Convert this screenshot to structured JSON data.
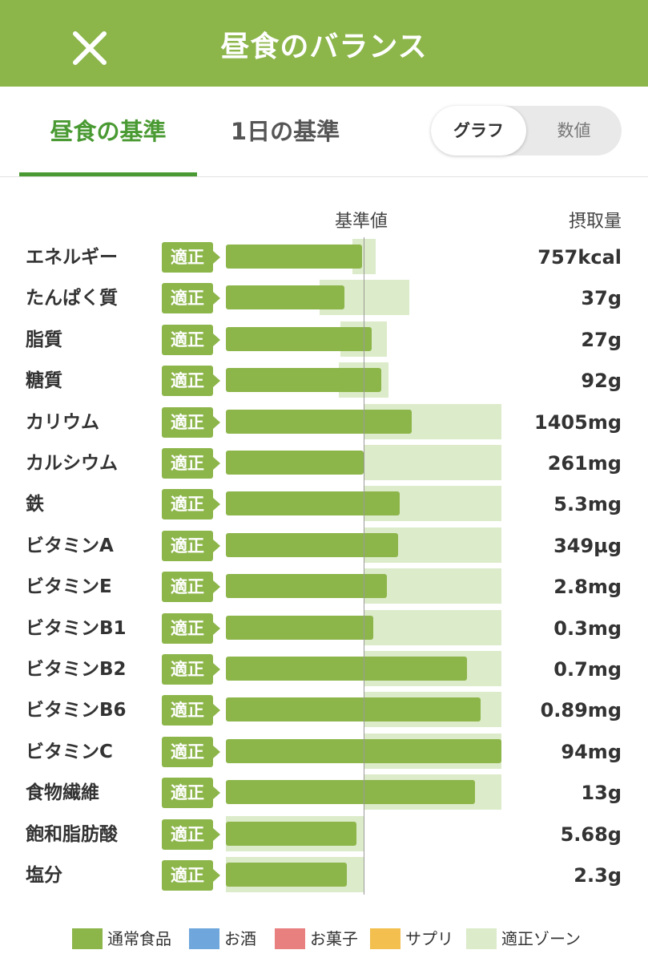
{
  "header": {
    "title": "昼食のバランス"
  },
  "tabs": [
    {
      "label": "昼食の基準"
    },
    {
      "label": "1日の基準"
    }
  ],
  "toggle": {
    "graph_label": "グラフ",
    "number_label": "数値"
  },
  "columns": {
    "reference": "基準値",
    "intake": "摂取量"
  },
  "nutrients": [
    {
      "name": "エネルギー",
      "status": "適正",
      "value": "757kcal",
      "ratio": 0.99,
      "zone": [
        0.92,
        1.09
      ]
    },
    {
      "name": "たんぱく質",
      "status": "適正",
      "value": "37g",
      "ratio": 0.86,
      "zone": [
        0.68,
        1.33
      ]
    },
    {
      "name": "脂質",
      "status": "適正",
      "value": "27g",
      "ratio": 1.06,
      "zone": [
        0.83,
        1.17
      ]
    },
    {
      "name": "糖質",
      "status": "適正",
      "value": "92g",
      "ratio": 1.13,
      "zone": [
        0.82,
        1.18
      ]
    },
    {
      "name": "カリウム",
      "status": "適正",
      "value": "1405mg",
      "ratio": 1.35,
      "zone": [
        1.0,
        2.0
      ]
    },
    {
      "name": "カルシウム",
      "status": "適正",
      "value": "261mg",
      "ratio": 1.0,
      "zone": [
        1.0,
        2.0
      ]
    },
    {
      "name": "鉄",
      "status": "適正",
      "value": "5.3mg",
      "ratio": 1.26,
      "zone": [
        1.0,
        2.0
      ]
    },
    {
      "name": "ビタミンA",
      "status": "適正",
      "value": "349µg",
      "ratio": 1.25,
      "zone": [
        1.0,
        2.0
      ]
    },
    {
      "name": "ビタミンE",
      "status": "適正",
      "value": "2.8mg",
      "ratio": 1.17,
      "zone": [
        1.0,
        2.0
      ]
    },
    {
      "name": "ビタミンB1",
      "status": "適正",
      "value": "0.3mg",
      "ratio": 1.07,
      "zone": [
        1.0,
        2.0
      ]
    },
    {
      "name": "ビタミンB2",
      "status": "適正",
      "value": "0.7mg",
      "ratio": 1.75,
      "zone": [
        1.0,
        2.0
      ]
    },
    {
      "name": "ビタミンB6",
      "status": "適正",
      "value": "0.89mg",
      "ratio": 1.85,
      "zone": [
        1.0,
        2.0
      ]
    },
    {
      "name": "ビタミンC",
      "status": "適正",
      "value": "94mg",
      "ratio": 2.0,
      "zone": [
        1.0,
        2.0
      ]
    },
    {
      "name": "食物繊維",
      "status": "適正",
      "value": "13g",
      "ratio": 1.81,
      "zone": [
        1.0,
        2.0
      ]
    },
    {
      "name": "飽和脂肪酸",
      "status": "適正",
      "value": "5.68g",
      "ratio": 0.95,
      "zone": [
        0.0,
        1.0
      ]
    },
    {
      "name": "塩分",
      "status": "適正",
      "value": "2.3g",
      "ratio": 0.88,
      "zone": [
        0.0,
        1.0
      ]
    }
  ],
  "legend": [
    {
      "label": "通常食品",
      "color": "#8cb54a"
    },
    {
      "label": "お酒",
      "color": "#6fa7dc"
    },
    {
      "label": "お菓子",
      "color": "#e98080"
    },
    {
      "label": "サプリ",
      "color": "#f3bf4e"
    },
    {
      "label": "適正ゾーン",
      "color": "#dcebc9"
    }
  ],
  "colors": {
    "accent": "#8cb54a",
    "tab_active": "#4a9a33",
    "zone": "#dcebc9"
  }
}
